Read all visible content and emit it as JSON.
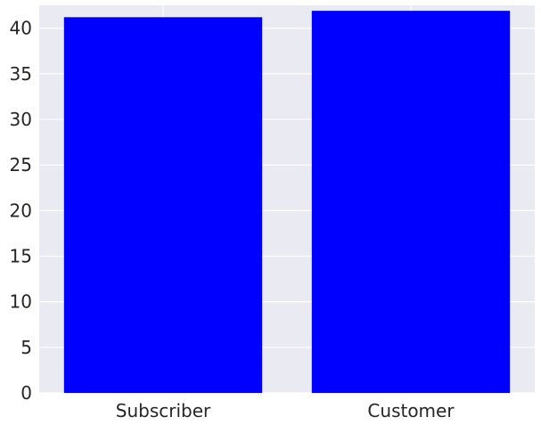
{
  "chart_data": {
    "type": "bar",
    "categories": [
      "Subscriber",
      "Customer"
    ],
    "values": [
      41.2,
      41.9
    ],
    "title": "",
    "xlabel": "",
    "ylabel": "",
    "ylim": [
      0,
      42.5
    ],
    "yticks": [
      "0",
      "5",
      "10",
      "15",
      "20",
      "25",
      "30",
      "35",
      "40"
    ],
    "grid": true,
    "legend": "none",
    "colors": {
      "bar": "#0000ff",
      "plot_background": "#eaeaf2",
      "grid": "#ffffff"
    }
  }
}
